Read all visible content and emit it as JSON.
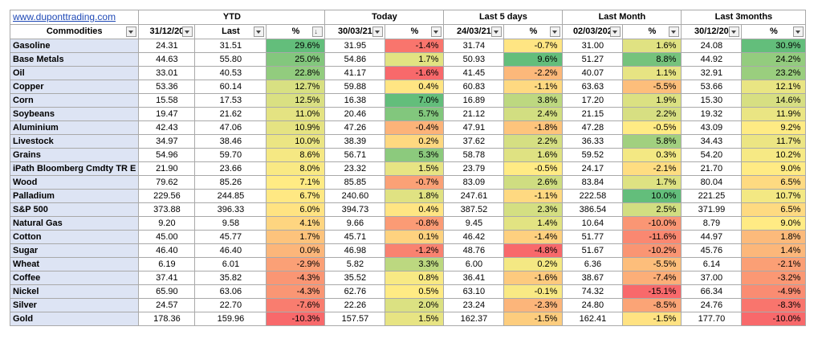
{
  "website": "www.duponttrading.com",
  "groups": [
    "YTD",
    "Today",
    "Last 5 days",
    "Last Month",
    "Last 3months"
  ],
  "headers": [
    "Commodities",
    "31/12/20",
    "Last",
    "%",
    "30/03/21",
    "%",
    "24/03/21",
    "%",
    "02/03/202",
    "%",
    "30/12/20",
    "%"
  ],
  "rows": [
    {
      "name": "Gasoline",
      "ytd_base": "24.31",
      "last": "31.51",
      "ytd_pct": "29.6%",
      "today_base": "31.95",
      "today_pct": "-1.4%",
      "d5_base": "31.74",
      "d5_pct": "-0.7%",
      "m1_base": "31.00",
      "m1_pct": "1.6%",
      "m3_base": "24.08",
      "m3_pct": "30.9%"
    },
    {
      "name": "Base Metals",
      "ytd_base": "44.63",
      "last": "55.80",
      "ytd_pct": "25.0%",
      "today_base": "54.86",
      "today_pct": "1.7%",
      "d5_base": "50.93",
      "d5_pct": "9.6%",
      "m1_base": "51.27",
      "m1_pct": "8.8%",
      "m3_base": "44.92",
      "m3_pct": "24.2%"
    },
    {
      "name": "Oil",
      "ytd_base": "33.01",
      "last": "40.53",
      "ytd_pct": "22.8%",
      "today_base": "41.17",
      "today_pct": "-1.6%",
      "d5_base": "41.45",
      "d5_pct": "-2.2%",
      "m1_base": "40.07",
      "m1_pct": "1.1%",
      "m3_base": "32.91",
      "m3_pct": "23.2%"
    },
    {
      "name": "Copper",
      "ytd_base": "53.36",
      "last": "60.14",
      "ytd_pct": "12.7%",
      "today_base": "59.88",
      "today_pct": "0.4%",
      "d5_base": "60.83",
      "d5_pct": "-1.1%",
      "m1_base": "63.63",
      "m1_pct": "-5.5%",
      "m3_base": "53.66",
      "m3_pct": "12.1%"
    },
    {
      "name": "Corn",
      "ytd_base": "15.58",
      "last": "17.53",
      "ytd_pct": "12.5%",
      "today_base": "16.38",
      "today_pct": "7.0%",
      "d5_base": "16.89",
      "d5_pct": "3.8%",
      "m1_base": "17.20",
      "m1_pct": "1.9%",
      "m3_base": "15.30",
      "m3_pct": "14.6%"
    },
    {
      "name": "Soybeans",
      "ytd_base": "19.47",
      "last": "21.62",
      "ytd_pct": "11.0%",
      "today_base": "20.46",
      "today_pct": "5.7%",
      "d5_base": "21.12",
      "d5_pct": "2.4%",
      "m1_base": "21.15",
      "m1_pct": "2.2%",
      "m3_base": "19.32",
      "m3_pct": "11.9%"
    },
    {
      "name": "Aluminium",
      "ytd_base": "42.43",
      "last": "47.06",
      "ytd_pct": "10.9%",
      "today_base": "47.26",
      "today_pct": "-0.4%",
      "d5_base": "47.91",
      "d5_pct": "-1.8%",
      "m1_base": "47.28",
      "m1_pct": "-0.5%",
      "m3_base": "43.09",
      "m3_pct": "9.2%"
    },
    {
      "name": "Livestock",
      "ytd_base": "34.97",
      "last": "38.46",
      "ytd_pct": "10.0%",
      "today_base": "38.39",
      "today_pct": "0.2%",
      "d5_base": "37.62",
      "d5_pct": "2.2%",
      "m1_base": "36.33",
      "m1_pct": "5.8%",
      "m3_base": "34.43",
      "m3_pct": "11.7%"
    },
    {
      "name": "Grains",
      "ytd_base": "54.96",
      "last": "59.70",
      "ytd_pct": "8.6%",
      "today_base": "56.71",
      "today_pct": "5.3%",
      "d5_base": "58.78",
      "d5_pct": "1.6%",
      "m1_base": "59.52",
      "m1_pct": "0.3%",
      "m3_base": "54.20",
      "m3_pct": "10.2%"
    },
    {
      "name": "iPath Bloomberg Cmdty TR E",
      "ytd_base": "21.90",
      "last": "23.66",
      "ytd_pct": "8.0%",
      "today_base": "23.32",
      "today_pct": "1.5%",
      "d5_base": "23.79",
      "d5_pct": "-0.5%",
      "m1_base": "24.17",
      "m1_pct": "-2.1%",
      "m3_base": "21.70",
      "m3_pct": "9.0%"
    },
    {
      "name": "Wood",
      "ytd_base": "79.62",
      "last": "85.26",
      "ytd_pct": "7.1%",
      "today_base": "85.85",
      "today_pct": "-0.7%",
      "d5_base": "83.09",
      "d5_pct": "2.6%",
      "m1_base": "83.84",
      "m1_pct": "1.7%",
      "m3_base": "80.04",
      "m3_pct": "6.5%"
    },
    {
      "name": "Palladium",
      "ytd_base": "229.56",
      "last": "244.85",
      "ytd_pct": "6.7%",
      "today_base": "240.60",
      "today_pct": "1.8%",
      "d5_base": "247.61",
      "d5_pct": "-1.1%",
      "m1_base": "222.58",
      "m1_pct": "10.0%",
      "m3_base": "221.25",
      "m3_pct": "10.7%"
    },
    {
      "name": "S&P 500",
      "ytd_base": "373.88",
      "last": "396.33",
      "ytd_pct": "6.0%",
      "today_base": "394.73",
      "today_pct": "0.4%",
      "d5_base": "387.52",
      "d5_pct": "2.3%",
      "m1_base": "386.54",
      "m1_pct": "2.5%",
      "m3_base": "371.99",
      "m3_pct": "6.5%"
    },
    {
      "name": "Natural Gas",
      "ytd_base": "9.20",
      "last": "9.58",
      "ytd_pct": "4.1%",
      "today_base": "9.66",
      "today_pct": "-0.8%",
      "d5_base": "9.45",
      "d5_pct": "1.4%",
      "m1_base": "10.64",
      "m1_pct": "-10.0%",
      "m3_base": "8.79",
      "m3_pct": "9.0%"
    },
    {
      "name": "Cotton",
      "ytd_base": "45.00",
      "last": "45.77",
      "ytd_pct": "1.7%",
      "today_base": "45.71",
      "today_pct": "0.1%",
      "d5_base": "46.42",
      "d5_pct": "-1.4%",
      "m1_base": "51.77",
      "m1_pct": "-11.6%",
      "m3_base": "44.97",
      "m3_pct": "1.8%"
    },
    {
      "name": "Sugar",
      "ytd_base": "46.40",
      "last": "46.40",
      "ytd_pct": "0.0%",
      "today_base": "46.98",
      "today_pct": "-1.2%",
      "d5_base": "48.76",
      "d5_pct": "-4.8%",
      "m1_base": "51.67",
      "m1_pct": "-10.2%",
      "m3_base": "45.76",
      "m3_pct": "1.4%"
    },
    {
      "name": "Wheat",
      "ytd_base": "6.19",
      "last": "6.01",
      "ytd_pct": "-2.9%",
      "today_base": "5.82",
      "today_pct": "3.3%",
      "d5_base": "6.00",
      "d5_pct": "0.2%",
      "m1_base": "6.36",
      "m1_pct": "-5.5%",
      "m3_base": "6.14",
      "m3_pct": "-2.1%"
    },
    {
      "name": "Coffee",
      "ytd_base": "37.41",
      "last": "35.82",
      "ytd_pct": "-4.3%",
      "today_base": "35.52",
      "today_pct": "0.8%",
      "d5_base": "36.41",
      "d5_pct": "-1.6%",
      "m1_base": "38.67",
      "m1_pct": "-7.4%",
      "m3_base": "37.00",
      "m3_pct": "-3.2%"
    },
    {
      "name": "Nickel",
      "ytd_base": "65.90",
      "last": "63.06",
      "ytd_pct": "-4.3%",
      "today_base": "62.76",
      "today_pct": "0.5%",
      "d5_base": "63.10",
      "d5_pct": "-0.1%",
      "m1_base": "74.32",
      "m1_pct": "-15.1%",
      "m3_base": "66.34",
      "m3_pct": "-4.9%"
    },
    {
      "name": "Silver",
      "ytd_base": "24.57",
      "last": "22.70",
      "ytd_pct": "-7.6%",
      "today_base": "22.26",
      "today_pct": "2.0%",
      "d5_base": "23.24",
      "d5_pct": "-2.3%",
      "m1_base": "24.80",
      "m1_pct": "-8.5%",
      "m3_base": "24.76",
      "m3_pct": "-8.3%"
    },
    {
      "name": "Gold",
      "ytd_base": "178.36",
      "last": "159.96",
      "ytd_pct": "-10.3%",
      "today_base": "157.57",
      "today_pct": "1.5%",
      "d5_base": "162.37",
      "d5_pct": "-1.5%",
      "m1_base": "162.41",
      "m1_pct": "-1.5%",
      "m3_base": "177.70",
      "m3_pct": "-10.0%"
    }
  ],
  "colors": {
    "name_fill": "#dde4f4",
    "scale_red": "#f8696b",
    "scale_yellow": "#ffeb84",
    "scale_green": "#63be7b",
    "link": "#1f49b6"
  }
}
